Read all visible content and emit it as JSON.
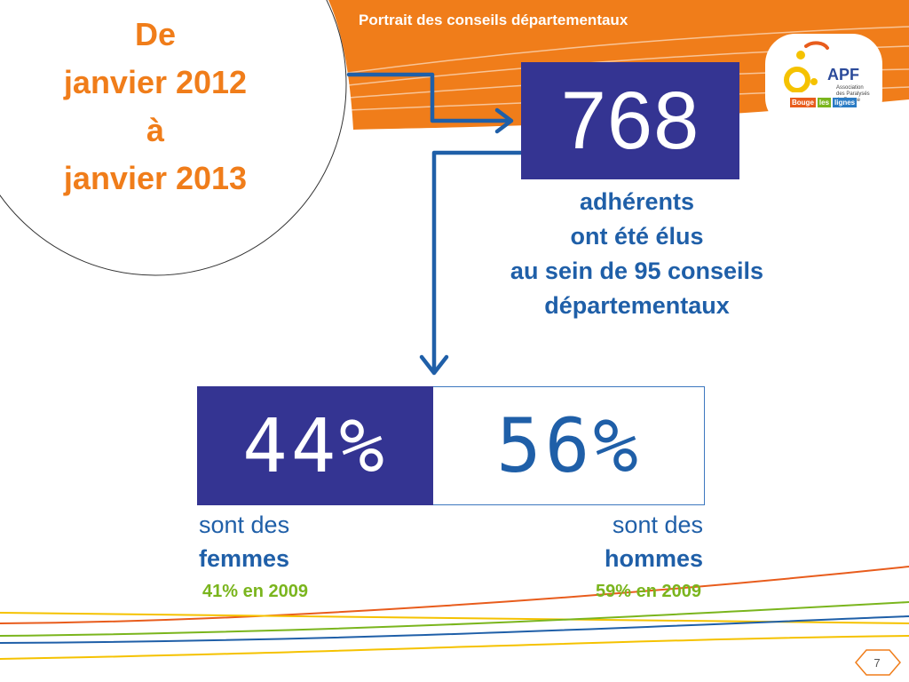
{
  "header": {
    "title": "Portrait des conseils départementaux"
  },
  "period": {
    "lines": [
      "De",
      "janvier 2012",
      "à",
      "janvier 2013"
    ]
  },
  "members": {
    "count": "768",
    "caption_lines": [
      "adhérents",
      "ont été élus",
      "au sein de 95 conseils",
      "départementaux"
    ]
  },
  "gender": {
    "women_percent": "44%",
    "men_percent": "56%",
    "women_caption_prefix": "sont des",
    "women_caption_word": "femmes",
    "men_caption_prefix": "sont des",
    "men_caption_word": "hommes",
    "women_2009": "41% en 2009",
    "men_2009": "59% en 2009"
  },
  "logo": {
    "acronym": "APF",
    "subtitle_lines": [
      "Association",
      "des Paralysés",
      "de France"
    ],
    "badge_words": [
      "Bouge",
      "les",
      "lignes"
    ]
  },
  "footer": {
    "page_number": "7"
  },
  "colors": {
    "orange": "#f07d1a",
    "navy": "#343492",
    "blue": "#1f5fa8",
    "green": "#7ab51d"
  }
}
